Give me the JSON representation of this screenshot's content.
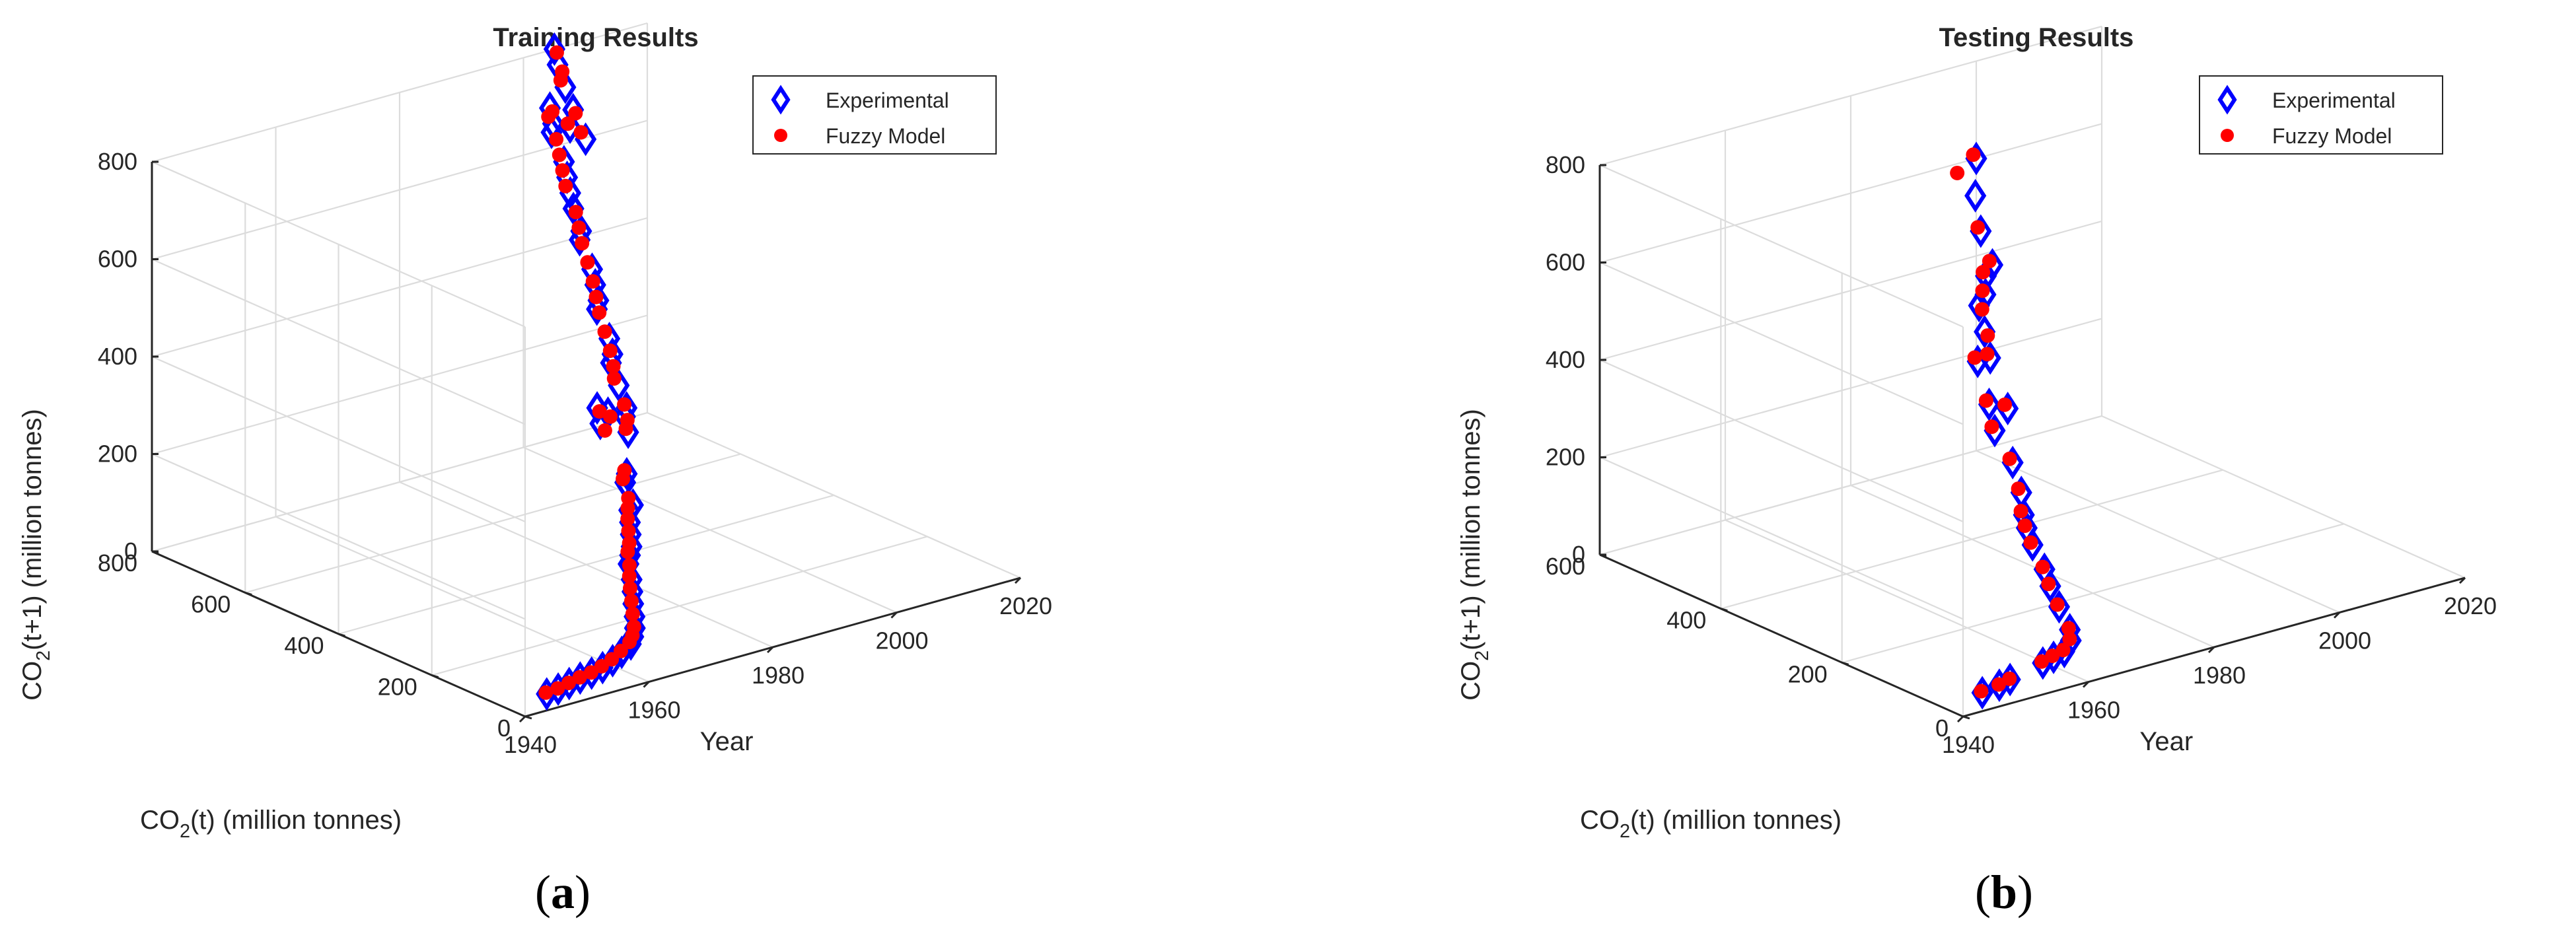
{
  "figure": {
    "panel_labels": [
      {
        "open": "(",
        "letter": "a",
        "close": ")"
      },
      {
        "open": "(",
        "letter": "b",
        "close": ")"
      }
    ]
  },
  "colors": {
    "experimental": "#0000ff",
    "fuzzy": "#ff0000",
    "grid": "#dcdcdc",
    "axis": "#262626",
    "text": "#262626"
  },
  "chart_data": [
    {
      "type": "scatter",
      "projection": "3d",
      "title": "Training Results",
      "xlabel": "Year",
      "ylabel_parts": [
        "CO",
        "2",
        "(t) (million tonnes)"
      ],
      "zlabel_parts": [
        "CO",
        "2",
        "(t+1) (million tonnes)"
      ],
      "xlim": [
        1940,
        2020
      ],
      "ylim": [
        0,
        800
      ],
      "zlim": [
        0,
        800
      ],
      "xticks": [
        "1940",
        "1960",
        "1980",
        "2000",
        "2020"
      ],
      "yticks": [
        "0",
        "200",
        "400",
        "600",
        "800"
      ],
      "zticks": [
        "0",
        "200",
        "400",
        "600",
        "800"
      ],
      "grid": true,
      "legend_position": "top-right",
      "series": [
        {
          "name": "Experimental",
          "marker": "diamond",
          "points": [
            [
              1945,
              20,
              20
            ],
            [
              1947,
              22,
              22
            ],
            [
              1949,
              25,
              25
            ],
            [
              1951,
              28,
              28
            ],
            [
              1953,
              30,
              30
            ],
            [
              1955,
              33,
              33
            ],
            [
              1957,
              38,
              38
            ],
            [
              1959,
              45,
              45
            ],
            [
              1961,
              52,
              52
            ],
            [
              1962,
              60,
              60
            ],
            [
              1963,
              70,
              70
            ],
            [
              1964,
              84,
              84
            ],
            [
              1965,
              100,
              100
            ],
            [
              1966,
              115,
              115
            ],
            [
              1967,
              130,
              130
            ],
            [
              1968,
              150,
              150
            ],
            [
              1969,
              160,
              160
            ],
            [
              1970,
              170,
              170
            ],
            [
              1971,
              185,
              185
            ],
            [
              1972,
              200,
              200
            ],
            [
              1973,
              215,
              215
            ],
            [
              1974,
              220,
              220
            ],
            [
              1975,
              250,
              250
            ],
            [
              1976,
              260,
              260
            ],
            [
              1977,
              330,
              330
            ],
            [
              1978,
              350,
              350
            ],
            [
              1979,
              340,
              340
            ],
            [
              1980,
              310,
              310
            ],
            [
              1981,
              330,
              330
            ],
            [
              1982,
              340,
              340
            ],
            [
              1983,
              370,
              370
            ],
            [
              1984,
              400,
              400
            ],
            [
              1985,
              410,
              410
            ],
            [
              1986,
              430,
              430
            ],
            [
              1987,
              470,
              470
            ],
            [
              1988,
              480,
              480
            ],
            [
              1989,
              500,
              500
            ],
            [
              1990,
              520,
              520
            ],
            [
              1991,
              560,
              560
            ],
            [
              1992,
              570,
              570
            ],
            [
              1993,
              600,
              600
            ],
            [
              1994,
              620,
              620
            ],
            [
              1995,
              640,
              640
            ],
            [
              1996,
              660,
              660
            ],
            [
              1997,
              700,
              700
            ],
            [
              1998,
              710,
              710
            ],
            [
              1999,
              730,
              730
            ],
            [
              2000,
              700,
              700
            ],
            [
              2001,
              680,
              680
            ],
            [
              2002,
              720,
              720
            ],
            [
              2003,
              750,
              750
            ],
            [
              2004,
              780,
              780
            ],
            [
              2005,
              800,
              800
            ]
          ]
        },
        {
          "name": "Fuzzy Model",
          "marker": "dot",
          "points": [
            [
              1945,
              22,
              22
            ],
            [
              1947,
              23,
              23
            ],
            [
              1949,
              26,
              26
            ],
            [
              1951,
              29,
              29
            ],
            [
              1953,
              31,
              31
            ],
            [
              1955,
              35,
              35
            ],
            [
              1957,
              40,
              40
            ],
            [
              1959,
              47,
              47
            ],
            [
              1961,
              55,
              55
            ],
            [
              1962,
              62,
              62
            ],
            [
              1963,
              72,
              72
            ],
            [
              1964,
              88,
              88
            ],
            [
              1965,
              104,
              104
            ],
            [
              1966,
              120,
              120
            ],
            [
              1967,
              135,
              135
            ],
            [
              1968,
              148,
              148
            ],
            [
              1969,
              165,
              165
            ],
            [
              1970,
              175,
              175
            ],
            [
              1971,
              190,
              190
            ],
            [
              1972,
              205,
              205
            ],
            [
              1973,
              218,
              218
            ],
            [
              1974,
              230,
              230
            ],
            [
              1975,
              255,
              255
            ],
            [
              1976,
              265,
              265
            ],
            [
              1977,
              320,
              320
            ],
            [
              1978,
              345,
              345
            ],
            [
              1979,
              335,
              335
            ],
            [
              1980,
              315,
              315
            ],
            [
              1981,
              325,
              325
            ],
            [
              1982,
              345,
              345
            ],
            [
              1983,
              380,
              380
            ],
            [
              1984,
              395,
              395
            ],
            [
              1985,
              415,
              415
            ],
            [
              1986,
              440,
              440
            ],
            [
              1987,
              465,
              465
            ],
            [
              1988,
              485,
              485
            ],
            [
              1989,
              505,
              505
            ],
            [
              1990,
              530,
              530
            ],
            [
              1991,
              555,
              555
            ],
            [
              1992,
              575,
              575
            ],
            [
              1993,
              595,
              595
            ],
            [
              1994,
              630,
              630
            ],
            [
              1995,
              650,
              650
            ],
            [
              1996,
              670,
              670
            ],
            [
              1997,
              690,
              690
            ],
            [
              1998,
              720,
              720
            ],
            [
              1999,
              725,
              725
            ],
            [
              2000,
              705,
              705
            ],
            [
              2001,
              690,
              690
            ],
            [
              2002,
              715,
              715
            ],
            [
              2003,
              760,
              760
            ],
            [
              2004,
              770,
              770
            ],
            [
              2005,
              795,
              795
            ]
          ]
        }
      ]
    },
    {
      "type": "scatter",
      "projection": "3d",
      "title": "Testing Results",
      "xlabel": "Year",
      "ylabel_parts": [
        "CO",
        "2",
        "(t) (million tonnes)"
      ],
      "zlabel_parts": [
        "CO",
        "2",
        "(t+1) (million tonnes)"
      ],
      "xlim": [
        1940,
        2020
      ],
      "ylim": [
        0,
        600
      ],
      "zlim": [
        0,
        800
      ],
      "xticks": [
        "1940",
        "1960",
        "1980",
        "2000",
        "2020"
      ],
      "yticks": [
        "0",
        "200",
        "400",
        "600"
      ],
      "zticks": [
        "0",
        "200",
        "400",
        "600",
        "800"
      ],
      "grid": true,
      "legend_position": "top-right",
      "series": [
        {
          "name": "Experimental",
          "marker": "diamond",
          "points": [
            [
              1945,
              20,
              20
            ],
            [
              1948,
              23,
              23
            ],
            [
              1950,
              26,
              26
            ],
            [
              1956,
              34,
              34
            ],
            [
              1958,
              37,
              37
            ],
            [
              1960,
              40,
              40
            ],
            [
              1962,
              50,
              50
            ],
            [
              1963,
              62,
              62
            ],
            [
              1964,
              90,
              90
            ],
            [
              1965,
              115,
              115
            ],
            [
              1966,
              135,
              135
            ],
            [
              1967,
              165,
              165
            ],
            [
              1968,
              185,
              185
            ],
            [
              1969,
              200,
              200
            ],
            [
              1971,
              225,
              225
            ],
            [
              1973,
              260,
              260
            ],
            [
              1974,
              300,
              300
            ],
            [
              1976,
              330,
              330
            ],
            [
              1978,
              320,
              320
            ],
            [
              1979,
              380,
              380
            ],
            [
              1981,
              380,
              380
            ],
            [
              1983,
              410,
              410
            ],
            [
              1985,
              440,
              440
            ],
            [
              1987,
              450,
              450
            ],
            [
              1989,
              470,
              470
            ],
            [
              1991,
              480,
              480
            ],
            [
              1993,
              520,
              520
            ],
            [
              1996,
              560,
              560
            ],
            [
              2000,
              600,
              600
            ]
          ]
        },
        {
          "name": "Fuzzy Model",
          "marker": "dot",
          "points": [
            [
              1945,
              22,
              22
            ],
            [
              1948,
              24,
              24
            ],
            [
              1950,
              27,
              27
            ],
            [
              1956,
              36,
              36
            ],
            [
              1958,
              39,
              39
            ],
            [
              1960,
              42,
              42
            ],
            [
              1962,
              52,
              52
            ],
            [
              1963,
              64,
              64
            ],
            [
              1964,
              93,
              93
            ],
            [
              1965,
              118,
              118
            ],
            [
              1966,
              138,
              138
            ],
            [
              1967,
              168,
              168
            ],
            [
              1968,
              188,
              188
            ],
            [
              1969,
              205,
              205
            ],
            [
              1971,
              230,
              230
            ],
            [
              1973,
              265,
              265
            ],
            [
              1974,
              305,
              305
            ],
            [
              1976,
              335,
              335
            ],
            [
              1978,
              325,
              325
            ],
            [
              1979,
              385,
              385
            ],
            [
              1981,
              385,
              385
            ],
            [
              1983,
              405,
              405
            ],
            [
              1985,
              435,
              435
            ],
            [
              1987,
              455,
              455
            ],
            [
              1989,
              475,
              475
            ],
            [
              1991,
              485,
              485
            ],
            [
              1993,
              525,
              525
            ],
            [
              1996,
              590,
              590
            ],
            [
              2000,
              605,
              605
            ]
          ]
        }
      ]
    }
  ]
}
